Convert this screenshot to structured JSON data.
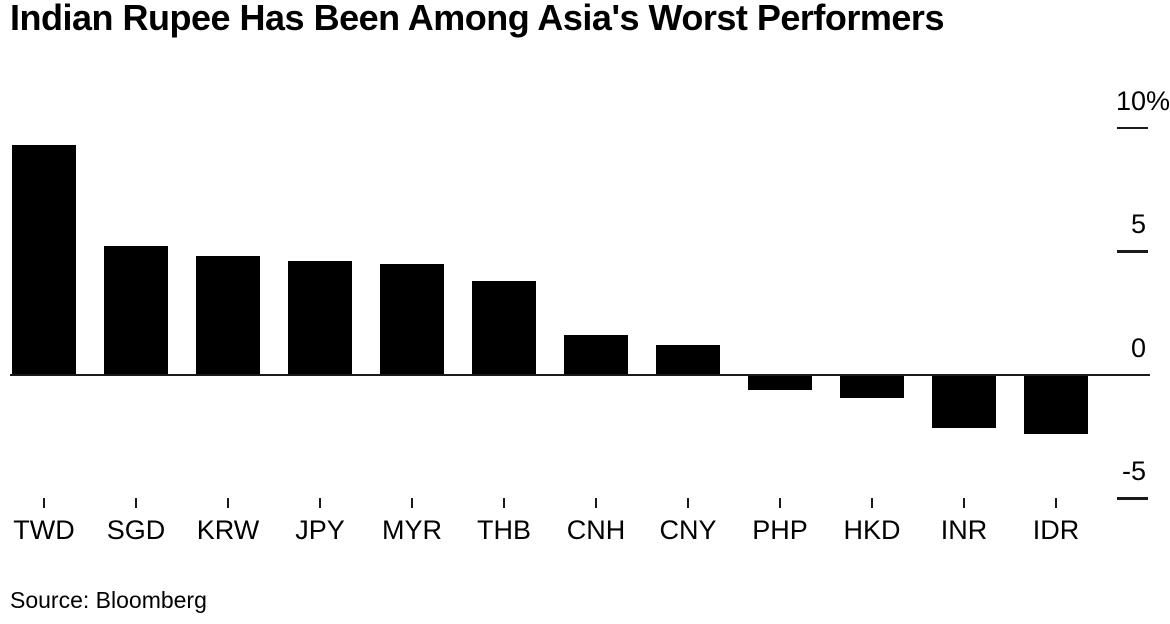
{
  "title": "Indian Rupee Has Been Among Asia's Worst Performers",
  "source": "Source: Bloomberg",
  "colors": {
    "bar": "#000000",
    "axis": "#1a1a1a",
    "text": "#000000",
    "background": "#ffffff"
  },
  "chart_data": {
    "type": "bar",
    "title": "Indian Rupee Has Been Among Asia's Worst Performers",
    "categories": [
      "TWD",
      "SGD",
      "KRW",
      "JPY",
      "MYR",
      "THB",
      "CNH",
      "CNY",
      "PHP",
      "HKD",
      "INR",
      "IDR"
    ],
    "values": [
      9.3,
      5.2,
      4.8,
      4.6,
      4.5,
      3.8,
      1.6,
      1.2,
      -0.6,
      -0.95,
      -2.15,
      -2.4
    ],
    "unit": "%",
    "xlabel": "",
    "ylabel": "",
    "yticks": [
      10,
      5,
      0,
      -5
    ],
    "ytick_labels": [
      "10%",
      "5",
      "0",
      "-5"
    ],
    "ylim": [
      -5.6,
      11.6
    ],
    "ytick_side": "right",
    "grid": false,
    "legend": false,
    "bar_color": "#000000",
    "source": "Source: Bloomberg"
  }
}
